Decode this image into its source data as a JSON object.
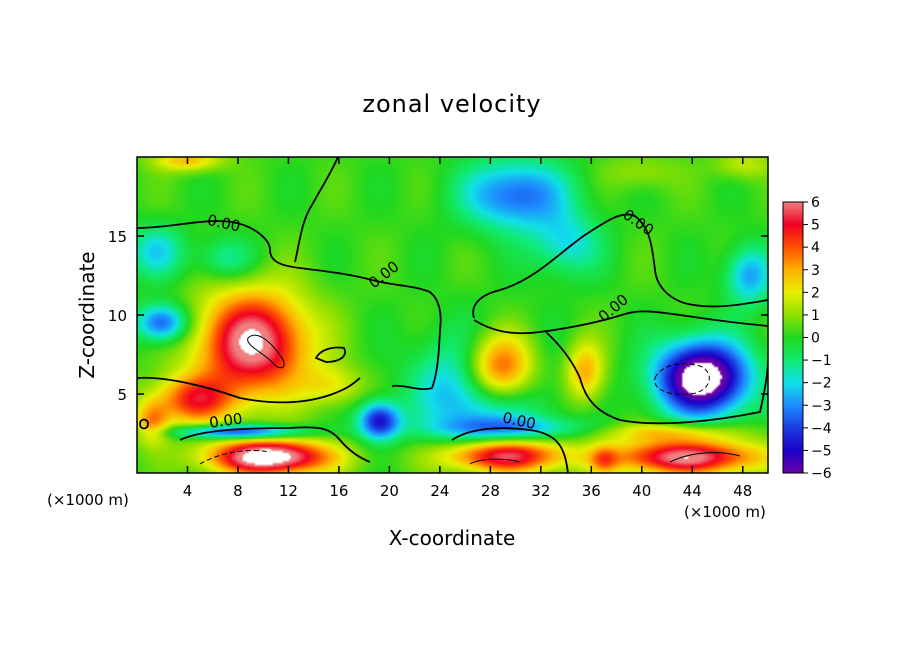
{
  "chart_data": {
    "type": "heatmap",
    "title": "zonal velocity",
    "xlabel": "X-coordinate",
    "ylabel": "Z-coordinate",
    "x_unit": "(×1000 m)",
    "x_unit_right": "(×1000 m)",
    "xlim": [
      0,
      50
    ],
    "ylim": [
      0,
      20
    ],
    "x_ticks": [
      4,
      8,
      12,
      16,
      20,
      24,
      28,
      32,
      36,
      40,
      44,
      48
    ],
    "x_tick_labels": [
      "4",
      "8",
      "12",
      "16",
      "20",
      "24",
      "28",
      "32",
      "36",
      "40",
      "44",
      "48"
    ],
    "y_ticks": [
      5,
      10,
      15
    ],
    "y_tick_labels": [
      "5",
      "10",
      "15"
    ],
    "colorbar": {
      "min": -6,
      "max": 6,
      "ticks": [
        6,
        5,
        4,
        3,
        2,
        1,
        0,
        -1,
        -2,
        -3,
        -4,
        -5,
        -6
      ],
      "tick_labels": [
        "6",
        "5",
        "4",
        "3",
        "2",
        "1",
        "0",
        "−1",
        "−2",
        "−3",
        "−4",
        "−5",
        "−6"
      ]
    },
    "contour_labels": [
      {
        "text": "0.00",
        "x": 6.8,
        "y": 15.5,
        "rotate": 12
      },
      {
        "text": "0.00",
        "x": 19.8,
        "y": 12.3,
        "rotate": -38
      },
      {
        "text": "0.00",
        "x": 39.5,
        "y": 15.6,
        "rotate": 35
      },
      {
        "text": "0.00",
        "x": 38.0,
        "y": 10.2,
        "rotate": -40
      },
      {
        "text": "0.00",
        "x": 7.1,
        "y": 3.0,
        "rotate": -8
      },
      {
        "text": "0.00",
        "x": 30.2,
        "y": 3.0,
        "rotate": 12
      }
    ],
    "features": [
      {
        "kind": "background",
        "value": 0.2
      },
      {
        "kind": "blob",
        "x": 30,
        "y": 17.6,
        "rx": 4.5,
        "ry": 2.4,
        "value": -3.6
      },
      {
        "kind": "blob",
        "x": 34,
        "y": 14.5,
        "rx": 3,
        "ry": 2.2,
        "value": -2.0
      },
      {
        "kind": "blob",
        "x": 1.5,
        "y": 14,
        "rx": 2.5,
        "ry": 1.8,
        "value": -2.0
      },
      {
        "kind": "blob",
        "x": 7,
        "y": 13.5,
        "rx": 2.5,
        "ry": 1.5,
        "value": -1.5
      },
      {
        "kind": "blob",
        "x": 48.5,
        "y": 12.5,
        "rx": 2,
        "ry": 2,
        "value": -2.8
      },
      {
        "kind": "blob",
        "x": 2,
        "y": 9.5,
        "rx": 2.2,
        "ry": 1.3,
        "value": -4.0
      },
      {
        "kind": "blob",
        "x": 4,
        "y": 19.8,
        "rx": 3,
        "ry": 0.8,
        "value": 2.8
      },
      {
        "kind": "blob",
        "x": 48,
        "y": 19.5,
        "rx": 2.5,
        "ry": 1,
        "value": 1.6
      },
      {
        "kind": "blob",
        "x": 40,
        "y": 19,
        "rx": 3,
        "ry": 1.2,
        "value": 1.2
      },
      {
        "kind": "blob",
        "x": 9.2,
        "y": 8.2,
        "rx": 4.8,
        "ry": 3.6,
        "value": 6.5
      },
      {
        "kind": "blob",
        "x": 4.5,
        "y": 4.6,
        "rx": 3.5,
        "ry": 1.7,
        "value": 4.2
      },
      {
        "kind": "blob",
        "x": 1.2,
        "y": 3.2,
        "rx": 1.5,
        "ry": 1.5,
        "value": 3.2
      },
      {
        "kind": "blob",
        "x": 15.5,
        "y": 5.5,
        "rx": 2.5,
        "ry": 1.4,
        "value": 2.0
      },
      {
        "kind": "blob",
        "x": 10.5,
        "y": 1.0,
        "rx": 5.2,
        "ry": 1.2,
        "value": 7.5
      },
      {
        "kind": "blob",
        "x": 8,
        "y": 2.6,
        "rx": 5.5,
        "ry": 0.5,
        "value": -4.6
      },
      {
        "kind": "blob",
        "x": 19.2,
        "y": 3.3,
        "rx": 1.8,
        "ry": 1.3,
        "value": -4.8
      },
      {
        "kind": "blob",
        "x": 28.7,
        "y": 6.4,
        "rx": 3.2,
        "ry": 2.6,
        "value": 7.5
      },
      {
        "kind": "blob",
        "x": 27.5,
        "y": 5.3,
        "rx": 5,
        "ry": 3.6,
        "value": -4.8
      },
      {
        "kind": "blob",
        "x": 29,
        "y": 1.1,
        "rx": 5.2,
        "ry": 1.2,
        "value": 6.2
      },
      {
        "kind": "blob",
        "x": 30,
        "y": 2.8,
        "rx": 7,
        "ry": 0.8,
        "value": -2.0
      },
      {
        "kind": "blob",
        "x": 35.5,
        "y": 6.4,
        "rx": 1.7,
        "ry": 2.1,
        "value": 3.2
      },
      {
        "kind": "blob",
        "x": 44.8,
        "y": 6.0,
        "rx": 3.9,
        "ry": 2.5,
        "value": -7.8
      },
      {
        "kind": "blob",
        "x": 43.5,
        "y": 1.0,
        "rx": 6.5,
        "ry": 1.2,
        "value": 6.2
      },
      {
        "kind": "blob",
        "x": 37,
        "y": 0.8,
        "rx": 1.2,
        "ry": 1,
        "value": 2.2
      },
      {
        "kind": "blob",
        "x": 42,
        "y": 2.6,
        "rx": 6,
        "ry": 0.7,
        "value": 2.5
      }
    ]
  }
}
